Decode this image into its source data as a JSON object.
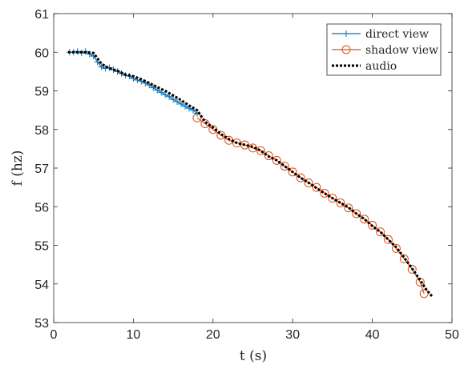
{
  "chart_data": {
    "type": "line",
    "xlabel": "t (s)",
    "ylabel": "f (hz)",
    "xlim": [
      0,
      50
    ],
    "ylim": [
      53,
      61
    ],
    "xticks": [
      "0",
      "10",
      "20",
      "30",
      "40",
      "50"
    ],
    "yticks": [
      "53",
      "54",
      "55",
      "56",
      "57",
      "58",
      "59",
      "60",
      "61"
    ],
    "grid": false,
    "legend_position": "top-right",
    "series": [
      {
        "name": "direct view",
        "color": "#0072BD",
        "marker": "plus",
        "x": [
          2.0,
          2.5,
          3.0,
          3.5,
          4.0,
          4.5,
          5.0,
          5.5,
          6.0,
          6.5,
          7.0,
          7.5,
          8.0,
          8.5,
          9.0,
          9.5,
          10.0,
          10.5,
          11.0,
          11.5,
          12.0,
          12.5,
          13.0,
          13.5,
          14.0,
          14.5,
          15.0,
          15.5,
          16.0,
          16.5,
          17.0,
          17.5,
          18.0
        ],
        "y": [
          60.0,
          60.0,
          60.02,
          59.98,
          60.02,
          59.95,
          59.9,
          59.75,
          59.62,
          59.58,
          59.6,
          59.55,
          59.5,
          59.45,
          59.4,
          59.38,
          59.32,
          59.28,
          59.25,
          59.2,
          59.15,
          59.08,
          59.02,
          58.96,
          58.9,
          58.85,
          58.78,
          58.72,
          58.66,
          58.6,
          58.55,
          58.5,
          58.42
        ]
      },
      {
        "name": "shadow view",
        "color": "#D95319",
        "marker": "circle",
        "x": [
          18,
          19,
          20,
          21,
          22,
          23,
          24,
          25,
          26,
          27,
          28,
          29,
          30,
          31,
          32,
          33,
          34,
          35,
          36,
          37,
          38,
          39,
          40,
          41,
          42,
          43,
          44,
          45,
          46,
          46.5
        ],
        "y": [
          58.3,
          58.15,
          58.0,
          57.85,
          57.72,
          57.65,
          57.6,
          57.52,
          57.45,
          57.32,
          57.2,
          57.05,
          56.9,
          56.75,
          56.62,
          56.5,
          56.35,
          56.22,
          56.1,
          55.97,
          55.82,
          55.68,
          55.52,
          55.35,
          55.15,
          54.92,
          54.65,
          54.38,
          54.05,
          53.75
        ]
      },
      {
        "name": "audio",
        "color": "#000000",
        "marker": "none",
        "x": [
          1.8,
          3.0,
          4.0,
          5.0,
          6.0,
          7.0,
          8.0,
          9.0,
          10.0,
          11.0,
          12.0,
          13.0,
          14.0,
          15.0,
          16.0,
          17.0,
          18.0,
          19.0,
          20.0,
          21.0,
          22.0,
          23.0,
          24.0,
          25.0,
          26.0,
          27.0,
          28.0,
          29.0,
          30.0,
          31.0,
          32.0,
          33.0,
          34.0,
          35.0,
          36.0,
          37.0,
          38.0,
          39.0,
          40.0,
          41.0,
          42.0,
          43.0,
          44.0,
          45.0,
          46.0,
          46.8,
          47.5
        ],
        "y": [
          60.0,
          60.0,
          60.0,
          59.98,
          59.7,
          59.58,
          59.52,
          59.42,
          59.38,
          59.3,
          59.2,
          59.1,
          59.0,
          58.88,
          58.76,
          58.62,
          58.5,
          58.2,
          58.05,
          57.88,
          57.75,
          57.65,
          57.6,
          57.55,
          57.45,
          57.3,
          57.2,
          57.05,
          56.9,
          56.75,
          56.62,
          56.48,
          56.35,
          56.22,
          56.1,
          55.98,
          55.82,
          55.68,
          55.5,
          55.35,
          55.15,
          54.95,
          54.68,
          54.4,
          54.1,
          53.85,
          53.68
        ]
      }
    ]
  }
}
